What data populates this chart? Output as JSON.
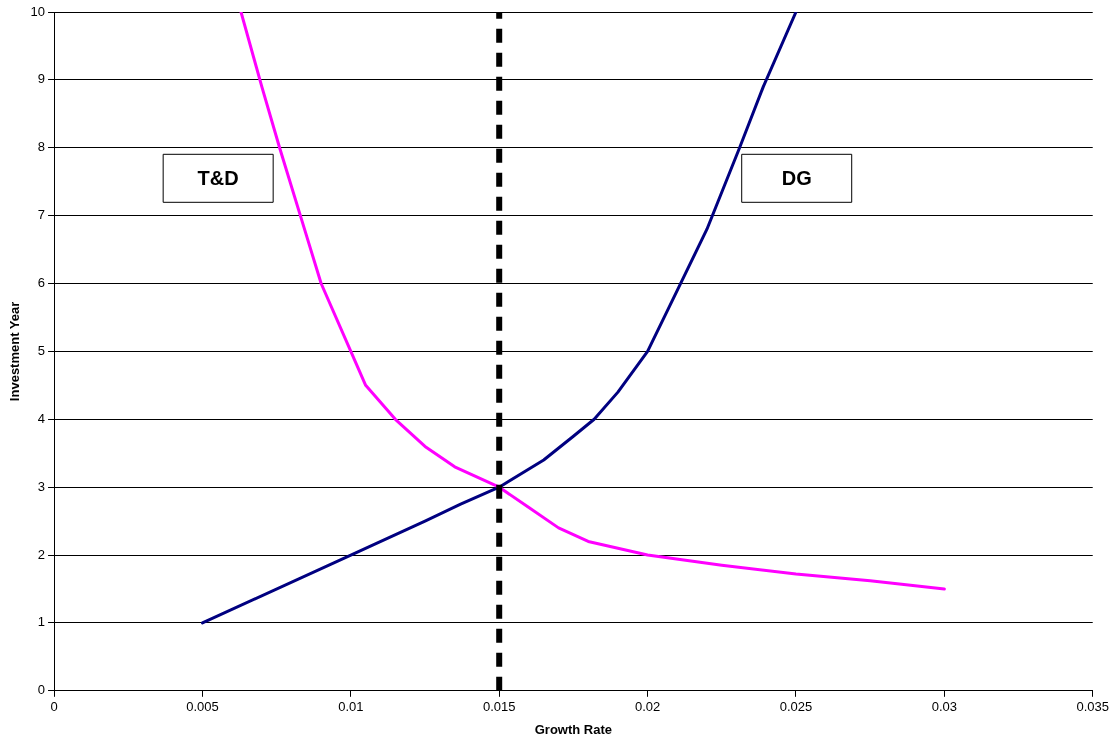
{
  "chart_data": {
    "type": "line",
    "xlabel": "Growth Rate",
    "ylabel": "Investment Year",
    "xlim": [
      0,
      0.035
    ],
    "xticks": [
      0,
      0.005,
      0.01,
      0.015,
      0.02,
      0.025,
      0.03,
      0.035
    ],
    "ylim": [
      0,
      10
    ],
    "yticks": [
      0,
      1,
      2,
      3,
      4,
      5,
      6,
      7,
      8,
      9,
      10
    ],
    "grid": "y",
    "legend": false,
    "marker": "none",
    "line_style": "solid",
    "series": [
      {
        "name": "T&D",
        "color": "#ff00ff",
        "x": [
          0.0063,
          0.007,
          0.0076,
          0.0083,
          0.009,
          0.01,
          0.0105,
          0.0115,
          0.0125,
          0.0135,
          0.015,
          0.016,
          0.017,
          0.018,
          0.02,
          0.0225,
          0.025,
          0.0275,
          0.03
        ],
        "values": [
          10,
          8.9,
          8,
          7,
          6,
          5,
          4.5,
          4,
          3.6,
          3.3,
          3,
          2.7,
          2.4,
          2.2,
          2,
          1.85,
          1.72,
          1.62,
          1.5
        ]
      },
      {
        "name": "DG",
        "color": "#000080",
        "x": [
          0.005,
          0.01,
          0.0125,
          0.0137,
          0.015,
          0.0165,
          0.0175,
          0.0182,
          0.019,
          0.02,
          0.021,
          0.022,
          0.0231,
          0.0239,
          0.025
        ],
        "values": [
          1,
          2,
          2.5,
          2.75,
          3,
          3.4,
          3.75,
          4,
          4.4,
          5,
          5.9,
          6.8,
          8,
          8.9,
          10
        ]
      }
    ],
    "ref_lines": [
      {
        "axis": "x",
        "value": 0.015,
        "color": "#000000",
        "line_style": "dashed"
      }
    ]
  }
}
